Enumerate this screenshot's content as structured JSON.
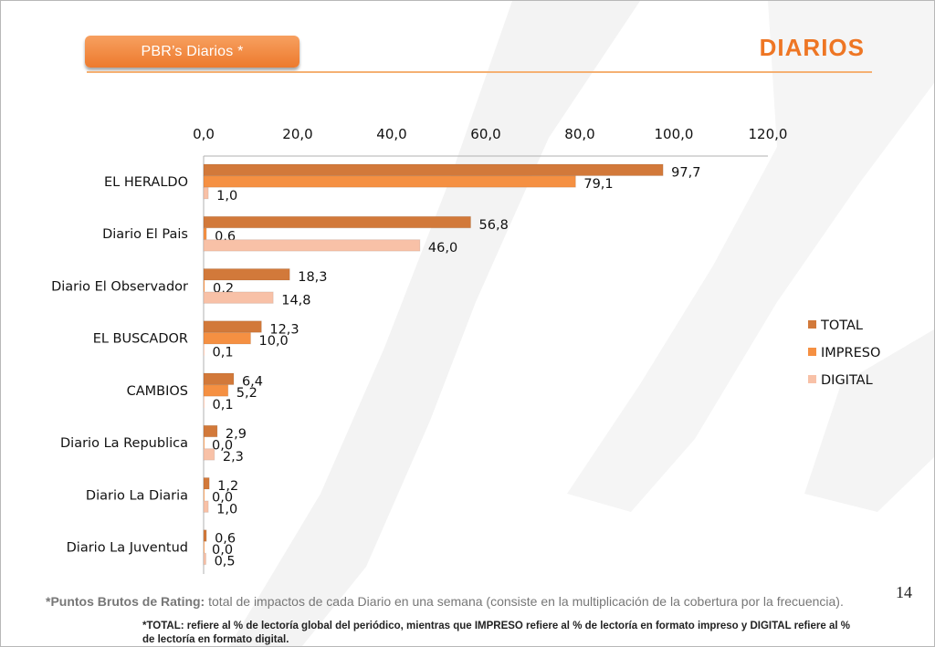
{
  "header": {
    "section_label": "PBR’s Diarios  *",
    "page_title": "DIARIOS"
  },
  "chart_data": {
    "type": "bar",
    "orientation": "horizontal",
    "x_axis_position": "top",
    "xlim": [
      0,
      120
    ],
    "x_ticks": [
      "0,0",
      "20,0",
      "40,0",
      "60,0",
      "80,0",
      "100,0",
      "120,0"
    ],
    "categories": [
      "EL HERALDO",
      "Diario El Pais",
      "Diario El Observador",
      "EL BUSCADOR",
      "CAMBIOS",
      "Diario La Republica",
      "Diario La Diaria",
      "Diario La Juventud"
    ],
    "series": [
      {
        "name": "TOTAL",
        "color": "#d2793a",
        "values": [
          97.7,
          56.8,
          18.3,
          12.3,
          6.4,
          2.9,
          1.2,
          0.6
        ],
        "labels": [
          "97,7",
          "56,8",
          "18,3",
          "12,3",
          "6,4",
          "2,9",
          "1,2",
          "0,6"
        ]
      },
      {
        "name": "IMPRESO",
        "color": "#f59042",
        "values": [
          79.1,
          0.6,
          0.2,
          10.0,
          5.2,
          0.0,
          0.0,
          0.0
        ],
        "labels": [
          "79,1",
          "0,6",
          "0,2",
          "10,0",
          "5,2",
          "0,0",
          "0,0",
          "0,0"
        ]
      },
      {
        "name": "DIGITAL",
        "color": "#f8c1a7",
        "values": [
          1.0,
          46.0,
          14.8,
          0.1,
          0.1,
          2.3,
          1.0,
          0.5
        ],
        "labels": [
          "1,0",
          "46,0",
          "14,8",
          "0,1",
          "0,1",
          "2,3",
          "1,0",
          "0,5"
        ]
      }
    ],
    "legend_position": "right",
    "grid": false
  },
  "page_number": "14",
  "footnotes": {
    "rating_term": "*Puntos Brutos de Rating:",
    "rating_text": " total de impactos de cada Diario en una semana (consiste en la multiplicación de la cobertura por la frecuencia).",
    "total_note": "*TOTAL: refiere al % de lectoría global del periódico, mientras que IMPRESO refiere al % de lectoría en formato impreso y DIGITAL refiere al % de lectoría en formato digital."
  }
}
